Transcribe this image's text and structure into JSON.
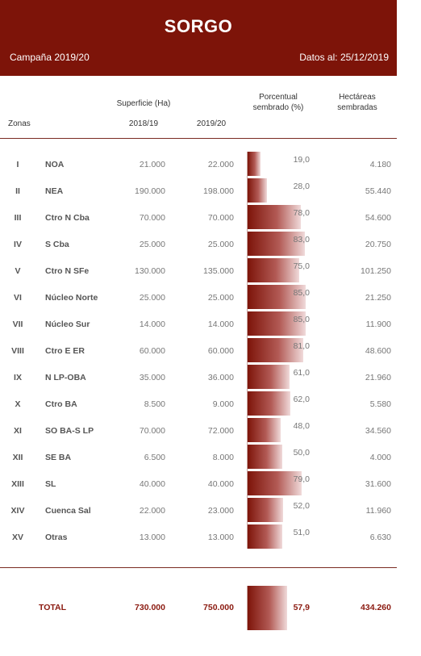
{
  "header": {
    "title": "SORGO",
    "campaign": "Campaña 2019/20",
    "date": "Datos al: 25/12/2019"
  },
  "columns": {
    "zonas": "Zonas",
    "superficie": "Superficie (Ha)",
    "y1": "2018/19",
    "y2": "2019/20",
    "porcentual_l1": "Porcentual",
    "porcentual_l2": "sembrado (%)",
    "hectareas_l1": "Hectáreas",
    "hectareas_l2": "sembradas"
  },
  "chart_data": {
    "type": "bar",
    "categories": [
      "NOA",
      "NEA",
      "Ctro N Cba",
      "S Cba",
      "Ctro N SFe",
      "Núcleo Norte",
      "Núcleo Sur",
      "Ctro E ER",
      "N LP-OBA",
      "Ctro BA",
      "SO BA-S LP",
      "SE BA",
      "SL",
      "Cuenca Sal",
      "Otras"
    ],
    "series": [
      {
        "values": [
          19.0,
          28.0,
          78.0,
          83.0,
          75.0,
          85.0,
          85.0,
          81.0,
          61.0,
          62.0,
          48.0,
          50.0,
          79.0,
          52.0,
          51.0
        ]
      }
    ],
    "ylim": [
      0,
      100
    ]
  },
  "rows": [
    {
      "roman": "I",
      "zona": "NOA",
      "v1": "21.000",
      "v2": "22.000",
      "pct": "19,0",
      "pct_value": 19.0,
      "hect": "4.180"
    },
    {
      "roman": "II",
      "zona": "NEA",
      "v1": "190.000",
      "v2": "198.000",
      "pct": "28,0",
      "pct_value": 28.0,
      "hect": "55.440"
    },
    {
      "roman": "III",
      "zona": "Ctro N Cba",
      "v1": "70.000",
      "v2": "70.000",
      "pct": "78,0",
      "pct_value": 78.0,
      "hect": "54.600"
    },
    {
      "roman": "IV",
      "zona": "S Cba",
      "v1": "25.000",
      "v2": "25.000",
      "pct": "83,0",
      "pct_value": 83.0,
      "hect": "20.750"
    },
    {
      "roman": "V",
      "zona": "Ctro N SFe",
      "v1": "130.000",
      "v2": "135.000",
      "pct": "75,0",
      "pct_value": 75.0,
      "hect": "101.250"
    },
    {
      "roman": "VI",
      "zona": "Núcleo Norte",
      "v1": "25.000",
      "v2": "25.000",
      "pct": "85,0",
      "pct_value": 85.0,
      "hect": "21.250"
    },
    {
      "roman": "VII",
      "zona": "Núcleo Sur",
      "v1": "14.000",
      "v2": "14.000",
      "pct": "85,0",
      "pct_value": 85.0,
      "hect": "11.900"
    },
    {
      "roman": "VIII",
      "zona": "Ctro E ER",
      "v1": "60.000",
      "v2": "60.000",
      "pct": "81,0",
      "pct_value": 81.0,
      "hect": "48.600"
    },
    {
      "roman": "IX",
      "zona": "N LP-OBA",
      "v1": "35.000",
      "v2": "36.000",
      "pct": "61,0",
      "pct_value": 61.0,
      "hect": "21.960"
    },
    {
      "roman": "X",
      "zona": "Ctro BA",
      "v1": "8.500",
      "v2": "9.000",
      "pct": "62,0",
      "pct_value": 62.0,
      "hect": "5.580"
    },
    {
      "roman": "XI",
      "zona": "SO BA-S LP",
      "v1": "70.000",
      "v2": "72.000",
      "pct": "48,0",
      "pct_value": 48.0,
      "hect": "34.560"
    },
    {
      "roman": "XII",
      "zona": "SE BA",
      "v1": "6.500",
      "v2": "8.000",
      "pct": "50,0",
      "pct_value": 50.0,
      "hect": "4.000"
    },
    {
      "roman": "XIII",
      "zona": "SL",
      "v1": "40.000",
      "v2": "40.000",
      "pct": "79,0",
      "pct_value": 79.0,
      "hect": "31.600"
    },
    {
      "roman": "XIV",
      "zona": "Cuenca Sal",
      "v1": "22.000",
      "v2": "23.000",
      "pct": "52,0",
      "pct_value": 52.0,
      "hect": "11.960"
    },
    {
      "roman": "XV",
      "zona": "Otras",
      "v1": "13.000",
      "v2": "13.000",
      "pct": "51,0",
      "pct_value": 51.0,
      "hect": "6.630"
    }
  ],
  "total": {
    "label": "TOTAL",
    "v1": "730.000",
    "v2": "750.000",
    "pct": "57,9",
    "pct_value": 57.9,
    "hect": "434.260"
  },
  "colors": {
    "header": "#7d1409",
    "bar_dark": "#7d1409",
    "bar_light": "#f0dada",
    "total_text": "#8b1a10"
  }
}
